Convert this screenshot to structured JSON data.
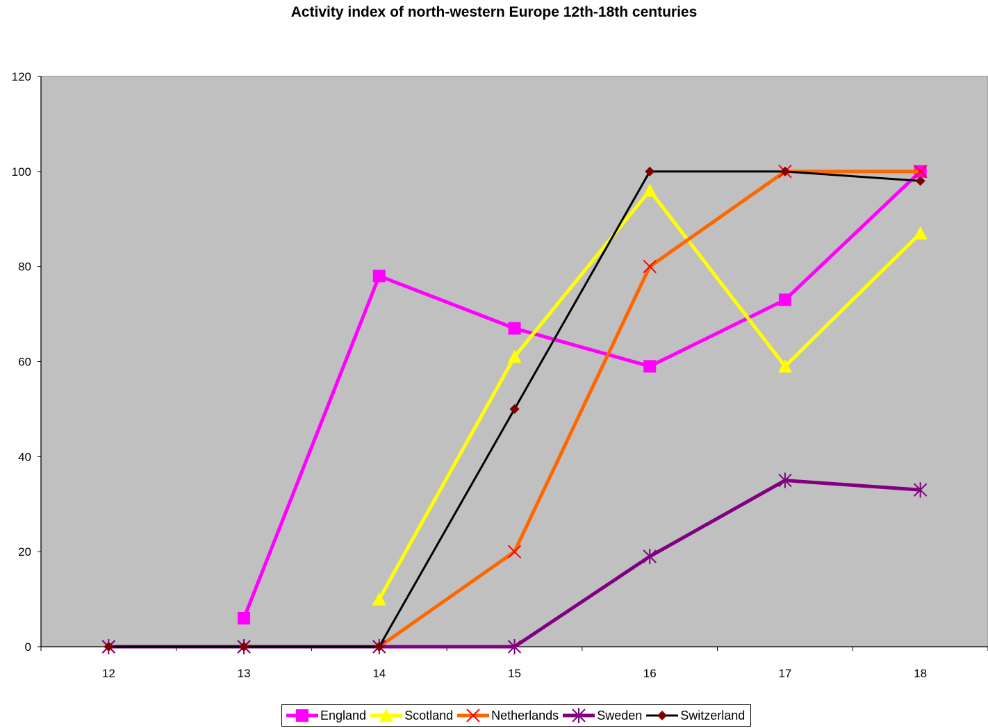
{
  "chart_data": {
    "type": "line",
    "title": "Activity index of north-western Europe 12th-18th centuries",
    "xlabel": "",
    "ylabel": "",
    "categories": [
      "12",
      "13",
      "14",
      "15",
      "16",
      "17",
      "18"
    ],
    "ylim": [
      0,
      120
    ],
    "yticks": [
      "0",
      "20",
      "40",
      "60",
      "80",
      "100",
      "120"
    ],
    "grid": false,
    "plot_background": "#C0C0C0",
    "legend": "bottom",
    "series": [
      {
        "name": "England",
        "color": "#FF00FF",
        "marker": "square",
        "values": [
          null,
          6,
          78,
          67,
          59,
          73,
          100
        ]
      },
      {
        "name": "Scotland",
        "color": "#FFFF00",
        "marker": "triangle",
        "values": [
          null,
          null,
          10,
          61,
          96,
          59,
          87
        ]
      },
      {
        "name": "Netherlands",
        "color": "#FF6600",
        "marker": "x",
        "values": [
          0,
          0,
          0,
          20,
          80,
          100,
          100
        ]
      },
      {
        "name": "Sweden",
        "color": "#800080",
        "marker": "star",
        "values": [
          0,
          0,
          0,
          0,
          19,
          35,
          33
        ]
      },
      {
        "name": "Switzerland",
        "color": "#000000",
        "marker": "diamond",
        "values": [
          0,
          0,
          0,
          50,
          100,
          100,
          98
        ]
      }
    ]
  }
}
